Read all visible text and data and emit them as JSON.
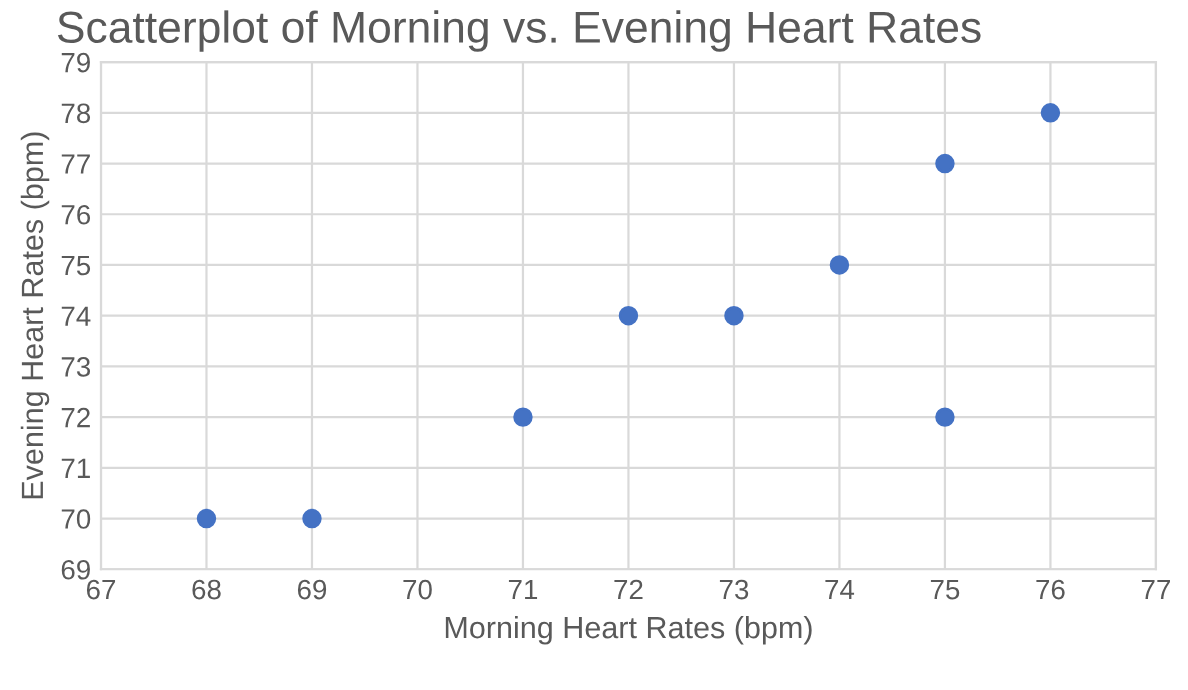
{
  "chart_data": {
    "type": "scatter",
    "title": "Scatterplot of Morning vs. Evening Heart Rates",
    "xlabel": "Morning Heart Rates (bpm)",
    "ylabel": "Evening Heart Rates (bpm)",
    "x": [
      68,
      69,
      71,
      72,
      73,
      74,
      75,
      75,
      76
    ],
    "series": [
      {
        "color": "#4472c4",
        "values": [
          70,
          70,
          72,
          74,
          74,
          75,
          77,
          72,
          78
        ]
      }
    ],
    "xlim": [
      67,
      77
    ],
    "xticks": [
      67,
      68,
      69,
      70,
      71,
      72,
      73,
      74,
      75,
      76,
      77
    ],
    "ylim": [
      69,
      79
    ],
    "yticks": [
      69,
      70,
      71,
      72,
      73,
      74,
      75,
      76,
      77,
      78,
      79
    ],
    "grid": true,
    "marker": "circle"
  }
}
